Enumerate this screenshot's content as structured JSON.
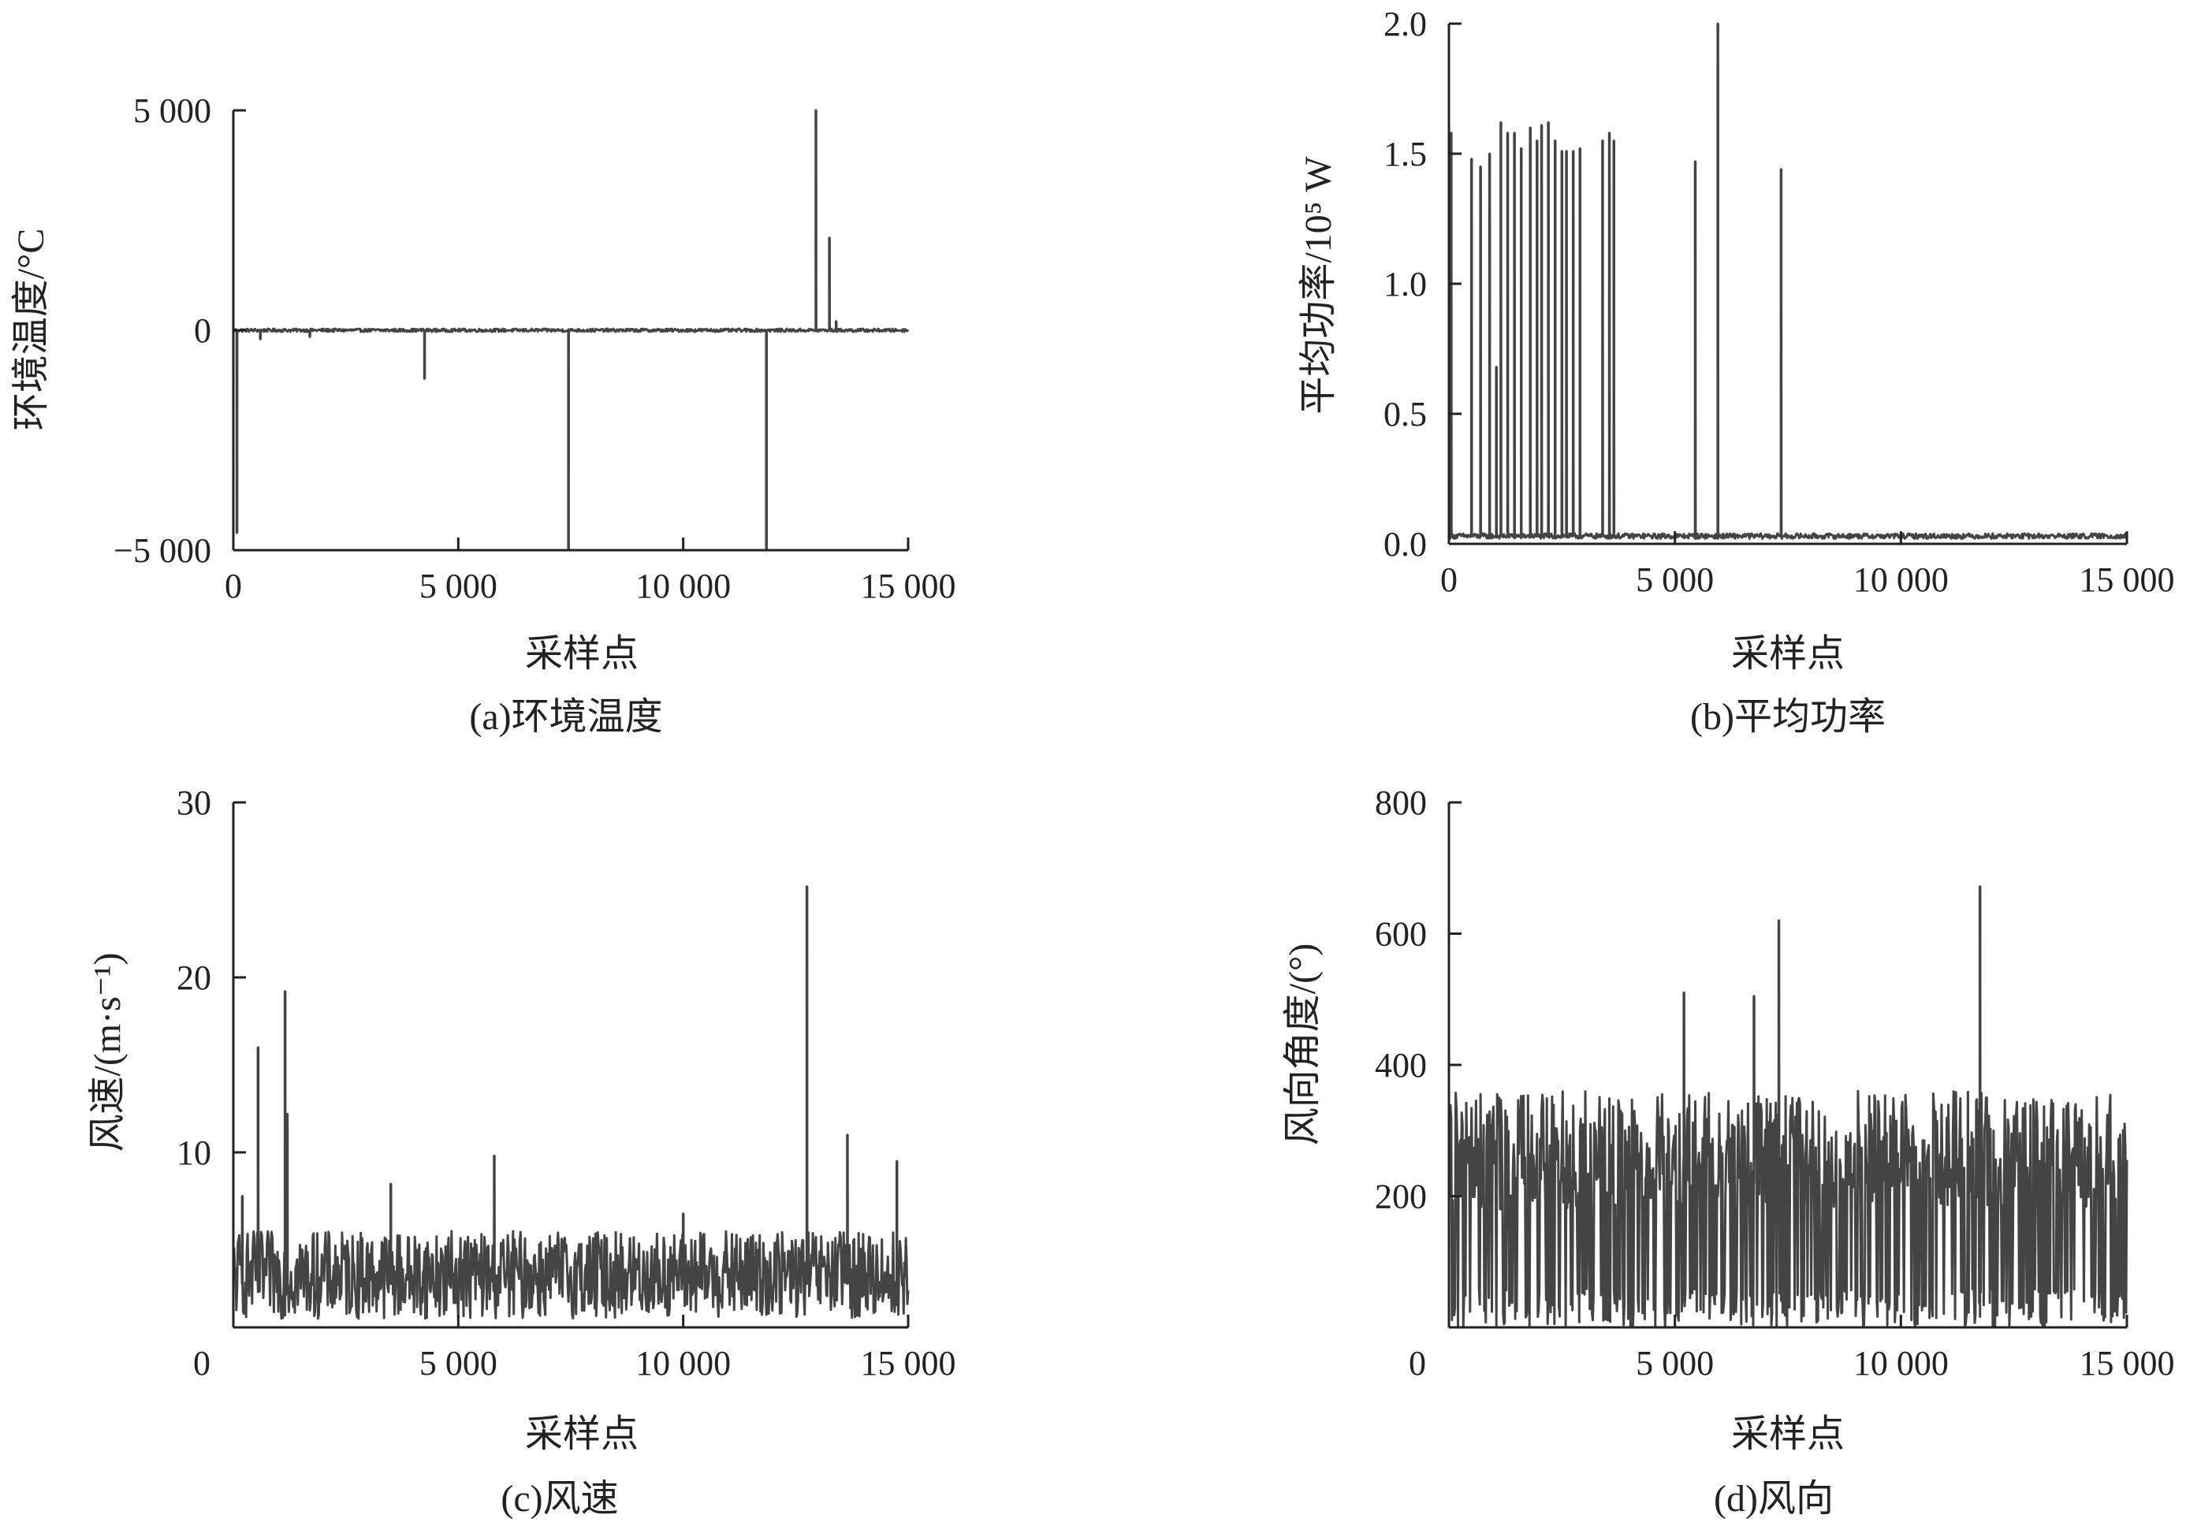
{
  "chart_data": [
    {
      "id": "a",
      "type": "line",
      "caption": "(a)环境温度",
      "xlabel": "采样点",
      "ylabel": "环境温度/°C",
      "xlim": [
        0,
        15000
      ],
      "ylim": [
        -5000,
        5000
      ],
      "x_ticks": [
        0,
        5000,
        10000,
        15000
      ],
      "x_tick_labels": [
        "0",
        "5 000",
        "10 000",
        "15 000"
      ],
      "y_ticks": [
        -5000,
        0,
        5000
      ],
      "y_tick_labels": [
        "−5 000",
        "0",
        "5 000"
      ],
      "color": "#444444",
      "baseline": 0,
      "noise": 35,
      "spikes": [
        [
          80,
          -4600
        ],
        [
          600,
          -200
        ],
        [
          1700,
          -150
        ],
        [
          4250,
          -1100
        ],
        [
          7450,
          -5000
        ],
        [
          11850,
          -5000
        ],
        [
          12950,
          5700
        ],
        [
          13250,
          2100
        ],
        [
          13400,
          200
        ]
      ],
      "grid": false,
      "legend": "none"
    },
    {
      "id": "b",
      "type": "line",
      "caption": "(b)平均功率",
      "xlabel": "采样点",
      "ylabel": "平均功率/10⁵ W",
      "xlim": [
        0,
        15000
      ],
      "ylim": [
        0,
        2.0
      ],
      "x_ticks": [
        0,
        5000,
        10000,
        15000
      ],
      "x_tick_labels": [
        "0",
        "5 000",
        "10 000",
        "15 000"
      ],
      "y_ticks": [
        0,
        0.5,
        1.0,
        1.5,
        2.0
      ],
      "y_tick_labels": [
        "0.0",
        "0.5",
        "1.0",
        "1.5",
        "2.0"
      ],
      "color": "#444444",
      "baseline": 0.03,
      "noise": 0.02,
      "spikes": [
        [
          50,
          1.58
        ],
        [
          500,
          1.48
        ],
        [
          700,
          1.45
        ],
        [
          900,
          1.5
        ],
        [
          1050,
          0.68
        ],
        [
          1150,
          1.62
        ],
        [
          1300,
          1.58
        ],
        [
          1450,
          1.58
        ],
        [
          1600,
          1.52
        ],
        [
          1800,
          1.6
        ],
        [
          1950,
          1.55
        ],
        [
          2050,
          1.61
        ],
        [
          2200,
          1.62
        ],
        [
          2350,
          1.55
        ],
        [
          2500,
          1.51
        ],
        [
          2600,
          1.51
        ],
        [
          2750,
          1.51
        ],
        [
          2900,
          1.52
        ],
        [
          3400,
          1.55
        ],
        [
          3550,
          1.58
        ],
        [
          3650,
          1.55
        ],
        [
          5450,
          1.47
        ],
        [
          5950,
          2.03
        ],
        [
          7350,
          1.44
        ]
      ],
      "grid": false,
      "legend": "none"
    },
    {
      "id": "c",
      "type": "line",
      "caption": "(c)风速",
      "xlabel": "采样点",
      "ylabel": "风速/(m·s⁻¹)",
      "xlim": [
        0,
        15000
      ],
      "ylim": [
        0,
        30
      ],
      "x_ticks": [
        0,
        5000,
        10000,
        15000
      ],
      "x_tick_labels": [
        "0",
        "5 000",
        "10 000",
        "15 000"
      ],
      "y_ticks": [
        10,
        20,
        30
      ],
      "y_tick_labels": [
        "10",
        "20",
        "30"
      ],
      "origin_label": "0",
      "color": "#444444",
      "baseline": 2.5,
      "noise": 2.5,
      "spikes": [
        [
          200,
          7.5
        ],
        [
          550,
          16
        ],
        [
          1150,
          19.2
        ],
        [
          1200,
          12.2
        ],
        [
          3500,
          8.2
        ],
        [
          5800,
          9.8
        ],
        [
          10000,
          6.5
        ],
        [
          12750,
          25.2
        ],
        [
          13650,
          11
        ],
        [
          14750,
          9.5
        ]
      ],
      "grid": false,
      "legend": "none"
    },
    {
      "id": "d",
      "type": "line",
      "caption": "(d)风向",
      "xlabel": "采样点",
      "ylabel": "风向角度/(°)",
      "xlim": [
        0,
        15000
      ],
      "ylim": [
        0,
        800
      ],
      "x_ticks": [
        0,
        5000,
        10000,
        15000
      ],
      "x_tick_labels": [
        "0",
        "5 000",
        "10 000",
        "15 000"
      ],
      "y_ticks": [
        200,
        400,
        600,
        800
      ],
      "y_tick_labels": [
        "200",
        "400",
        "600",
        "800"
      ],
      "origin_label": "0",
      "color": "#444444",
      "baseline": 260,
      "noise": 100,
      "spikes": [
        [
          5200,
          510
        ],
        [
          6750,
          505
        ],
        [
          7300,
          620
        ],
        [
          11750,
          672
        ]
      ],
      "grid": false,
      "legend": "none"
    }
  ]
}
